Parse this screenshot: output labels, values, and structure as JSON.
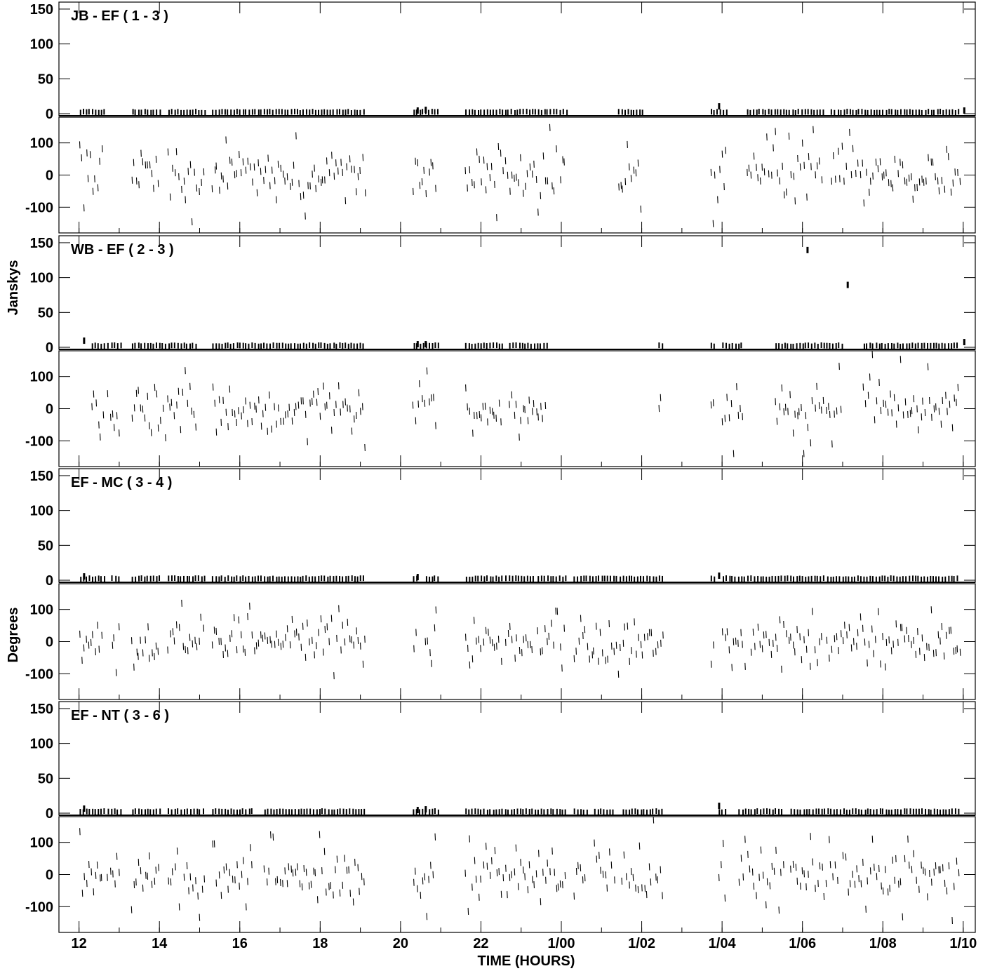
{
  "chart_data": {
    "type": "scatter",
    "xlabel": "TIME (HOURS)",
    "ylabel_amplitude": "Janskys",
    "ylabel_phase": "Degrees",
    "x_ticks": [
      "12",
      "14",
      "16",
      "18",
      "20",
      "22",
      "1/00",
      "1/02",
      "1/04",
      "1/06",
      "1/08",
      "1/10"
    ],
    "x_range_hours": [
      11.5,
      34.3
    ],
    "amplitude_ticks": [
      "150",
      "100",
      "50",
      "0"
    ],
    "amplitude_ylim": [
      -3,
      160
    ],
    "phase_ticks": [
      "100",
      "0",
      "-100"
    ],
    "phase_ylim": [
      -180,
      180
    ],
    "panels": [
      {
        "title": "JB - EF ( 1 - 3 )",
        "amp_segments": [
          [
            12.0,
            12.6
          ],
          [
            13.3,
            14.0
          ],
          [
            14.2,
            15.1
          ],
          [
            15.3,
            19.1
          ],
          [
            20.3,
            20.9
          ],
          [
            21.6,
            23.9
          ],
          [
            23.95,
            24.1
          ],
          [
            25.4,
            26.0
          ],
          [
            27.7,
            28.1
          ],
          [
            28.6,
            30.5
          ],
          [
            30.7,
            33.9
          ]
        ],
        "amp_spikes": [
          [
            20.4,
            5
          ],
          [
            20.6,
            6
          ],
          [
            27.9,
            11
          ],
          [
            34.0,
            5
          ]
        ],
        "phase_noise": 90
      },
      {
        "title": "WB - EF ( 2 - 3 )",
        "amp_segments": [
          [
            12.3,
            12.6
          ],
          [
            12.7,
            13.0
          ],
          [
            13.3,
            14.9
          ],
          [
            15.3,
            19.1
          ],
          [
            20.3,
            20.9
          ],
          [
            21.6,
            22.5
          ],
          [
            22.7,
            23.6
          ],
          [
            26.4,
            26.5
          ],
          [
            27.7,
            27.8
          ],
          [
            28.0,
            28.5
          ],
          [
            29.3,
            31.0
          ],
          [
            31.5,
            33.9
          ]
        ],
        "amp_spikes": [
          [
            12.1,
            10
          ],
          [
            20.4,
            5
          ],
          [
            20.6,
            5
          ],
          [
            31.1,
            90
          ],
          [
            30.1,
            140
          ],
          [
            34.0,
            8
          ]
        ],
        "phase_noise": 80
      },
      {
        "title": "EF - MC ( 3 - 4 )",
        "amp_segments": [
          [
            12.0,
            12.6
          ],
          [
            12.8,
            13.0
          ],
          [
            13.3,
            14.0
          ],
          [
            14.2,
            15.1
          ],
          [
            15.3,
            19.1
          ],
          [
            20.3,
            20.4
          ],
          [
            20.6,
            20.9
          ],
          [
            21.6,
            22.5
          ],
          [
            22.6,
            23.3
          ],
          [
            23.4,
            24.1
          ],
          [
            24.3,
            26.5
          ],
          [
            27.7,
            27.8
          ],
          [
            28.0,
            28.6
          ],
          [
            28.7,
            30.5
          ],
          [
            30.6,
            33.9
          ]
        ],
        "amp_spikes": [
          [
            12.1,
            6
          ],
          [
            20.4,
            5
          ],
          [
            27.9,
            7
          ]
        ],
        "phase_noise": 70
      },
      {
        "title": "EF - NT ( 3 - 6 )",
        "amp_segments": [
          [
            12.0,
            12.6
          ],
          [
            12.7,
            13.0
          ],
          [
            13.3,
            14.0
          ],
          [
            14.2,
            14.5
          ],
          [
            14.6,
            15.1
          ],
          [
            15.3,
            16.3
          ],
          [
            16.6,
            19.1
          ],
          [
            20.3,
            20.9
          ],
          [
            21.6,
            24.1
          ],
          [
            24.3,
            24.6
          ],
          [
            24.8,
            25.3
          ],
          [
            25.5,
            26.5
          ],
          [
            27.9,
            28.1
          ],
          [
            28.4,
            29.5
          ],
          [
            29.7,
            30.9
          ],
          [
            31.0,
            33.9
          ]
        ],
        "amp_spikes": [
          [
            12.1,
            7
          ],
          [
            20.4,
            5
          ],
          [
            20.6,
            6
          ],
          [
            27.9,
            11
          ]
        ],
        "phase_noise": 85
      }
    ]
  }
}
